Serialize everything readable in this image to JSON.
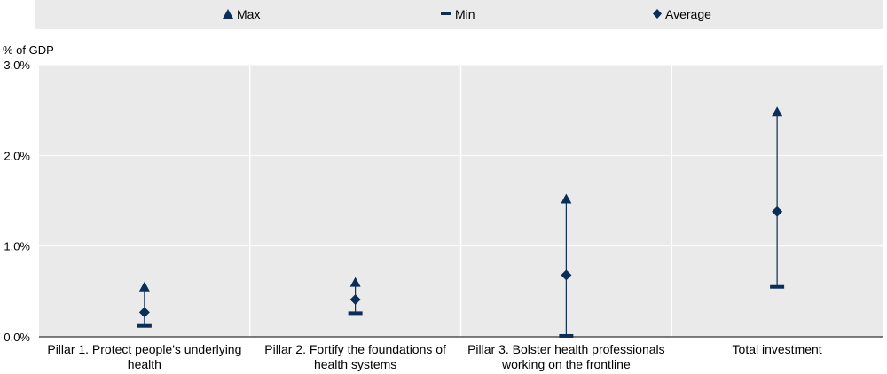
{
  "chart_data": {
    "type": "range-dot",
    "unit_label": "% of GDP",
    "ylim": [
      0,
      3
    ],
    "yticks": [
      "0.0%",
      "1.0%",
      "2.0%",
      "3.0%"
    ],
    "ytick_values": [
      0,
      1,
      2,
      3
    ],
    "legend": [
      {
        "key": "max",
        "label": "Max"
      },
      {
        "key": "min",
        "label": "Min"
      },
      {
        "key": "avg",
        "label": "Average"
      }
    ],
    "categories": [
      {
        "label_lines": [
          "Pillar 1. Protect people's underlying",
          "health"
        ],
        "max": 0.55,
        "min": 0.12,
        "avg": 0.27
      },
      {
        "label_lines": [
          "Pillar 2. Fortify the foundations of",
          "health systems"
        ],
        "max": 0.6,
        "min": 0.26,
        "avg": 0.41
      },
      {
        "label_lines": [
          "Pillar 3. Bolster health professionals",
          "working on the frontline"
        ],
        "max": 1.52,
        "min": 0.01,
        "avg": 0.68
      },
      {
        "label_lines": [
          "Total investment"
        ],
        "max": 2.48,
        "min": 0.55,
        "avg": 1.38
      }
    ],
    "colors": {
      "marker": "#0b2e59",
      "plot_bg": "#eaeaea",
      "legend_bg": "#eaeaea",
      "grid": "#ffffff"
    }
  }
}
